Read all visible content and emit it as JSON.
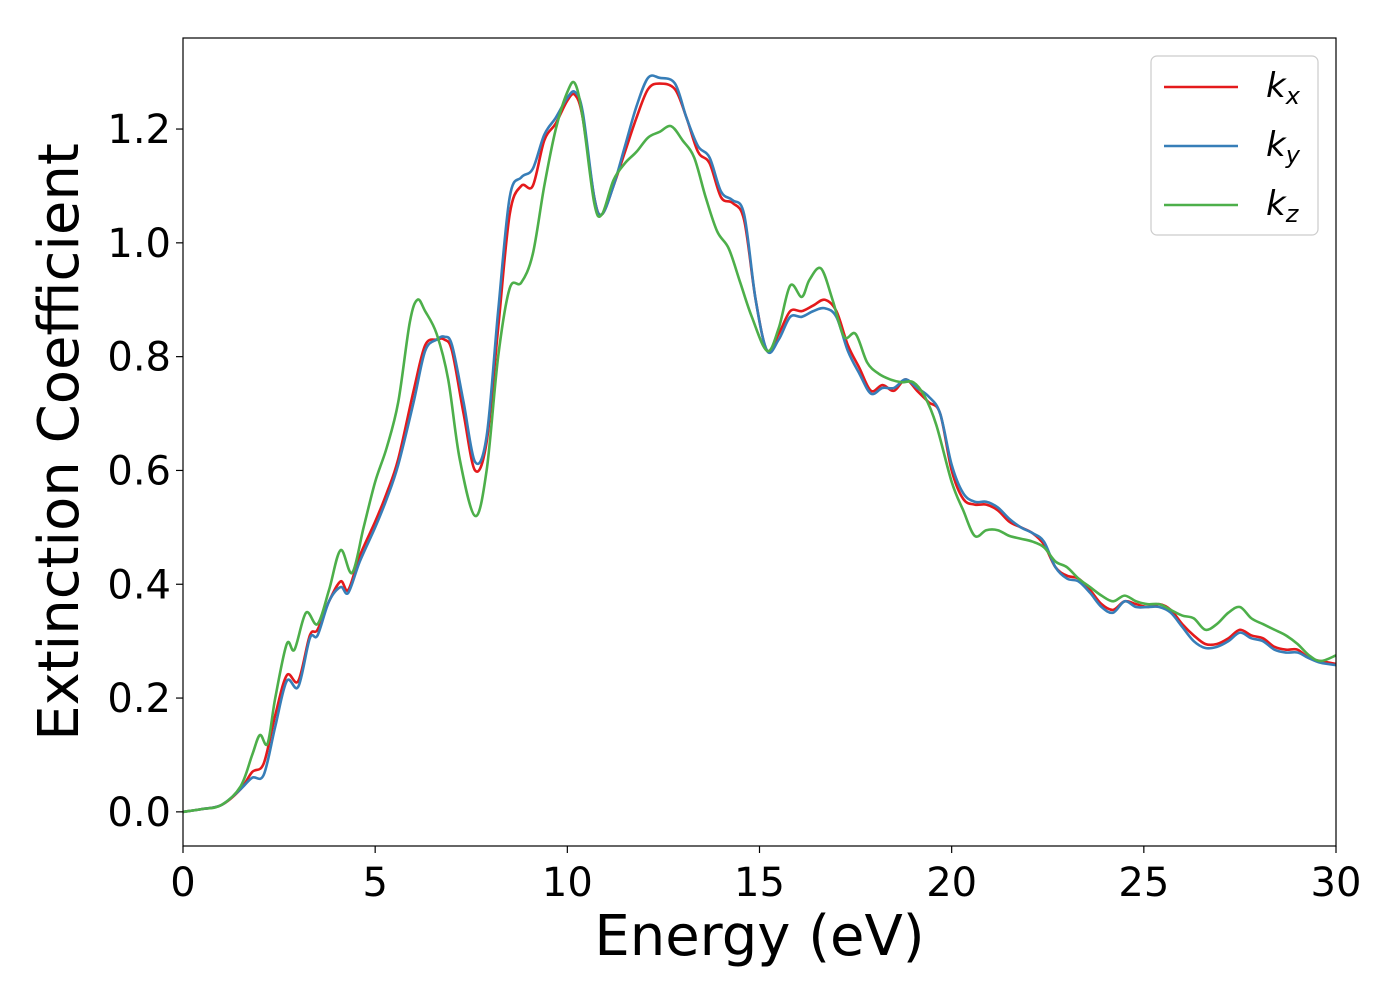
{
  "chart_data": {
    "type": "line",
    "title": "",
    "xlabel": "Energy (eV)",
    "ylabel": "Extinction Coefficient",
    "xlim": [
      0,
      30
    ],
    "ylim": [
      -0.06,
      1.36
    ],
    "xticks": [
      "0",
      "5",
      "10",
      "15",
      "20",
      "25",
      "30"
    ],
    "yticks": [
      "0.0",
      "0.2",
      "0.4",
      "0.6",
      "0.8",
      "1.0",
      "1.2"
    ],
    "grid": false,
    "legend_position": "top-right",
    "series": [
      {
        "name": "k",
        "subscript": "x",
        "color": "#e41a1c",
        "points": [
          [
            0,
            0
          ],
          [
            0.5,
            0.005
          ],
          [
            1.0,
            0.012
          ],
          [
            1.5,
            0.04
          ],
          [
            1.8,
            0.07
          ],
          [
            2.1,
            0.085
          ],
          [
            2.4,
            0.17
          ],
          [
            2.7,
            0.24
          ],
          [
            3.0,
            0.23
          ],
          [
            3.3,
            0.31
          ],
          [
            3.5,
            0.32
          ],
          [
            3.8,
            0.37
          ],
          [
            4.1,
            0.405
          ],
          [
            4.3,
            0.39
          ],
          [
            4.6,
            0.45
          ],
          [
            5.0,
            0.51
          ],
          [
            5.3,
            0.56
          ],
          [
            5.6,
            0.62
          ],
          [
            6.0,
            0.74
          ],
          [
            6.3,
            0.82
          ],
          [
            6.6,
            0.83
          ],
          [
            6.8,
            0.83
          ],
          [
            7.0,
            0.81
          ],
          [
            7.3,
            0.7
          ],
          [
            7.6,
            0.6
          ],
          [
            7.9,
            0.65
          ],
          [
            8.2,
            0.85
          ],
          [
            8.5,
            1.05
          ],
          [
            8.8,
            1.1
          ],
          [
            9.1,
            1.1
          ],
          [
            9.4,
            1.18
          ],
          [
            9.7,
            1.21
          ],
          [
            10.0,
            1.25
          ],
          [
            10.2,
            1.26
          ],
          [
            10.4,
            1.22
          ],
          [
            10.7,
            1.08
          ],
          [
            10.9,
            1.05
          ],
          [
            11.2,
            1.1
          ],
          [
            11.5,
            1.16
          ],
          [
            11.8,
            1.22
          ],
          [
            12.1,
            1.27
          ],
          [
            12.4,
            1.28
          ],
          [
            12.8,
            1.27
          ],
          [
            13.1,
            1.22
          ],
          [
            13.4,
            1.16
          ],
          [
            13.7,
            1.14
          ],
          [
            14.0,
            1.08
          ],
          [
            14.3,
            1.07
          ],
          [
            14.6,
            1.04
          ],
          [
            14.9,
            0.9
          ],
          [
            15.2,
            0.81
          ],
          [
            15.5,
            0.84
          ],
          [
            15.8,
            0.88
          ],
          [
            16.1,
            0.88
          ],
          [
            16.4,
            0.89
          ],
          [
            16.7,
            0.9
          ],
          [
            17.0,
            0.88
          ],
          [
            17.3,
            0.82
          ],
          [
            17.6,
            0.78
          ],
          [
            17.9,
            0.74
          ],
          [
            18.2,
            0.75
          ],
          [
            18.5,
            0.74
          ],
          [
            18.8,
            0.76
          ],
          [
            19.1,
            0.74
          ],
          [
            19.4,
            0.72
          ],
          [
            19.7,
            0.7
          ],
          [
            20.0,
            0.6
          ],
          [
            20.3,
            0.55
          ],
          [
            20.6,
            0.54
          ],
          [
            20.9,
            0.54
          ],
          [
            21.2,
            0.53
          ],
          [
            21.5,
            0.51
          ],
          [
            21.8,
            0.5
          ],
          [
            22.1,
            0.49
          ],
          [
            22.4,
            0.47
          ],
          [
            22.7,
            0.43
          ],
          [
            23.0,
            0.415
          ],
          [
            23.3,
            0.41
          ],
          [
            23.6,
            0.39
          ],
          [
            23.9,
            0.365
          ],
          [
            24.2,
            0.355
          ],
          [
            24.5,
            0.37
          ],
          [
            24.8,
            0.365
          ],
          [
            25.1,
            0.36
          ],
          [
            25.4,
            0.365
          ],
          [
            25.7,
            0.355
          ],
          [
            26.0,
            0.33
          ],
          [
            26.3,
            0.31
          ],
          [
            26.6,
            0.295
          ],
          [
            26.9,
            0.295
          ],
          [
            27.2,
            0.305
          ],
          [
            27.5,
            0.32
          ],
          [
            27.8,
            0.31
          ],
          [
            28.1,
            0.305
          ],
          [
            28.4,
            0.29
          ],
          [
            28.7,
            0.285
          ],
          [
            29.0,
            0.285
          ],
          [
            29.3,
            0.27
          ],
          [
            29.6,
            0.265
          ],
          [
            30.0,
            0.26
          ]
        ]
      },
      {
        "name": "k",
        "subscript": "y",
        "color": "#377eb8",
        "points": [
          [
            0,
            0
          ],
          [
            0.5,
            0.005
          ],
          [
            1.0,
            0.012
          ],
          [
            1.5,
            0.04
          ],
          [
            1.8,
            0.06
          ],
          [
            2.1,
            0.065
          ],
          [
            2.4,
            0.15
          ],
          [
            2.7,
            0.23
          ],
          [
            3.0,
            0.22
          ],
          [
            3.3,
            0.305
          ],
          [
            3.5,
            0.31
          ],
          [
            3.8,
            0.37
          ],
          [
            4.1,
            0.395
          ],
          [
            4.3,
            0.385
          ],
          [
            4.6,
            0.44
          ],
          [
            5.0,
            0.5
          ],
          [
            5.3,
            0.55
          ],
          [
            5.6,
            0.61
          ],
          [
            6.0,
            0.72
          ],
          [
            6.3,
            0.81
          ],
          [
            6.6,
            0.83
          ],
          [
            6.8,
            0.835
          ],
          [
            7.0,
            0.82
          ],
          [
            7.3,
            0.72
          ],
          [
            7.6,
            0.615
          ],
          [
            7.9,
            0.66
          ],
          [
            8.2,
            0.88
          ],
          [
            8.5,
            1.08
          ],
          [
            8.8,
            1.115
          ],
          [
            9.1,
            1.13
          ],
          [
            9.4,
            1.19
          ],
          [
            9.7,
            1.22
          ],
          [
            10.0,
            1.255
          ],
          [
            10.2,
            1.265
          ],
          [
            10.4,
            1.23
          ],
          [
            10.7,
            1.08
          ],
          [
            10.9,
            1.05
          ],
          [
            11.2,
            1.1
          ],
          [
            11.5,
            1.17
          ],
          [
            11.8,
            1.24
          ],
          [
            12.1,
            1.29
          ],
          [
            12.4,
            1.29
          ],
          [
            12.8,
            1.28
          ],
          [
            13.1,
            1.22
          ],
          [
            13.4,
            1.17
          ],
          [
            13.7,
            1.15
          ],
          [
            14.0,
            1.09
          ],
          [
            14.3,
            1.075
          ],
          [
            14.6,
            1.05
          ],
          [
            14.9,
            0.9
          ],
          [
            15.2,
            0.81
          ],
          [
            15.5,
            0.83
          ],
          [
            15.8,
            0.87
          ],
          [
            16.1,
            0.87
          ],
          [
            16.4,
            0.88
          ],
          [
            16.7,
            0.885
          ],
          [
            17.0,
            0.87
          ],
          [
            17.3,
            0.81
          ],
          [
            17.6,
            0.77
          ],
          [
            17.9,
            0.735
          ],
          [
            18.2,
            0.745
          ],
          [
            18.5,
            0.745
          ],
          [
            18.8,
            0.76
          ],
          [
            19.1,
            0.745
          ],
          [
            19.4,
            0.73
          ],
          [
            19.7,
            0.7
          ],
          [
            20.0,
            0.61
          ],
          [
            20.3,
            0.56
          ],
          [
            20.6,
            0.545
          ],
          [
            20.9,
            0.545
          ],
          [
            21.2,
            0.535
          ],
          [
            21.5,
            0.515
          ],
          [
            21.8,
            0.5
          ],
          [
            22.1,
            0.49
          ],
          [
            22.4,
            0.475
          ],
          [
            22.7,
            0.43
          ],
          [
            23.0,
            0.41
          ],
          [
            23.3,
            0.405
          ],
          [
            23.6,
            0.385
          ],
          [
            23.9,
            0.36
          ],
          [
            24.2,
            0.35
          ],
          [
            24.5,
            0.37
          ],
          [
            24.8,
            0.36
          ],
          [
            25.1,
            0.36
          ],
          [
            25.4,
            0.36
          ],
          [
            25.7,
            0.35
          ],
          [
            26.0,
            0.325
          ],
          [
            26.3,
            0.3
          ],
          [
            26.6,
            0.288
          ],
          [
            26.9,
            0.29
          ],
          [
            27.2,
            0.3
          ],
          [
            27.5,
            0.315
          ],
          [
            27.8,
            0.305
          ],
          [
            28.1,
            0.3
          ],
          [
            28.4,
            0.285
          ],
          [
            28.7,
            0.28
          ],
          [
            29.0,
            0.28
          ],
          [
            29.3,
            0.27
          ],
          [
            29.6,
            0.262
          ],
          [
            30.0,
            0.258
          ]
        ]
      },
      {
        "name": "k",
        "subscript": "z",
        "color": "#4daf4a",
        "points": [
          [
            0,
            0
          ],
          [
            0.5,
            0.005
          ],
          [
            1.0,
            0.012
          ],
          [
            1.5,
            0.045
          ],
          [
            1.8,
            0.1
          ],
          [
            2.0,
            0.135
          ],
          [
            2.2,
            0.12
          ],
          [
            2.4,
            0.2
          ],
          [
            2.7,
            0.295
          ],
          [
            2.9,
            0.285
          ],
          [
            3.2,
            0.35
          ],
          [
            3.5,
            0.33
          ],
          [
            3.8,
            0.39
          ],
          [
            4.1,
            0.46
          ],
          [
            4.4,
            0.42
          ],
          [
            4.7,
            0.5
          ],
          [
            5.0,
            0.58
          ],
          [
            5.3,
            0.64
          ],
          [
            5.6,
            0.72
          ],
          [
            5.9,
            0.86
          ],
          [
            6.1,
            0.9
          ],
          [
            6.3,
            0.88
          ],
          [
            6.6,
            0.84
          ],
          [
            6.9,
            0.76
          ],
          [
            7.2,
            0.62
          ],
          [
            7.6,
            0.52
          ],
          [
            7.9,
            0.6
          ],
          [
            8.2,
            0.8
          ],
          [
            8.5,
            0.92
          ],
          [
            8.8,
            0.93
          ],
          [
            9.1,
            0.98
          ],
          [
            9.4,
            1.1
          ],
          [
            9.7,
            1.2
          ],
          [
            10.0,
            1.265
          ],
          [
            10.2,
            1.28
          ],
          [
            10.4,
            1.22
          ],
          [
            10.7,
            1.07
          ],
          [
            10.9,
            1.05
          ],
          [
            11.2,
            1.11
          ],
          [
            11.5,
            1.14
          ],
          [
            11.8,
            1.16
          ],
          [
            12.1,
            1.185
          ],
          [
            12.4,
            1.195
          ],
          [
            12.7,
            1.205
          ],
          [
            13.0,
            1.18
          ],
          [
            13.3,
            1.15
          ],
          [
            13.6,
            1.08
          ],
          [
            13.9,
            1.02
          ],
          [
            14.2,
            0.99
          ],
          [
            14.5,
            0.93
          ],
          [
            14.8,
            0.87
          ],
          [
            15.2,
            0.81
          ],
          [
            15.5,
            0.85
          ],
          [
            15.8,
            0.925
          ],
          [
            16.1,
            0.905
          ],
          [
            16.3,
            0.935
          ],
          [
            16.6,
            0.955
          ],
          [
            16.9,
            0.9
          ],
          [
            17.2,
            0.835
          ],
          [
            17.5,
            0.84
          ],
          [
            17.8,
            0.79
          ],
          [
            18.1,
            0.77
          ],
          [
            18.4,
            0.76
          ],
          [
            18.7,
            0.755
          ],
          [
            19.0,
            0.755
          ],
          [
            19.3,
            0.73
          ],
          [
            19.6,
            0.68
          ],
          [
            20.0,
            0.58
          ],
          [
            20.3,
            0.53
          ],
          [
            20.6,
            0.485
          ],
          [
            20.9,
            0.495
          ],
          [
            21.2,
            0.495
          ],
          [
            21.5,
            0.485
          ],
          [
            21.8,
            0.48
          ],
          [
            22.1,
            0.475
          ],
          [
            22.4,
            0.465
          ],
          [
            22.7,
            0.44
          ],
          [
            23.0,
            0.43
          ],
          [
            23.3,
            0.41
          ],
          [
            23.6,
            0.395
          ],
          [
            23.9,
            0.38
          ],
          [
            24.2,
            0.37
          ],
          [
            24.5,
            0.38
          ],
          [
            24.8,
            0.37
          ],
          [
            25.1,
            0.365
          ],
          [
            25.4,
            0.365
          ],
          [
            25.7,
            0.355
          ],
          [
            26.0,
            0.345
          ],
          [
            26.3,
            0.34
          ],
          [
            26.6,
            0.32
          ],
          [
            26.9,
            0.33
          ],
          [
            27.2,
            0.35
          ],
          [
            27.5,
            0.36
          ],
          [
            27.8,
            0.34
          ],
          [
            28.1,
            0.33
          ],
          [
            28.4,
            0.32
          ],
          [
            28.7,
            0.31
          ],
          [
            29.0,
            0.295
          ],
          [
            29.3,
            0.275
          ],
          [
            29.6,
            0.265
          ],
          [
            30.0,
            0.275
          ]
        ]
      }
    ]
  }
}
